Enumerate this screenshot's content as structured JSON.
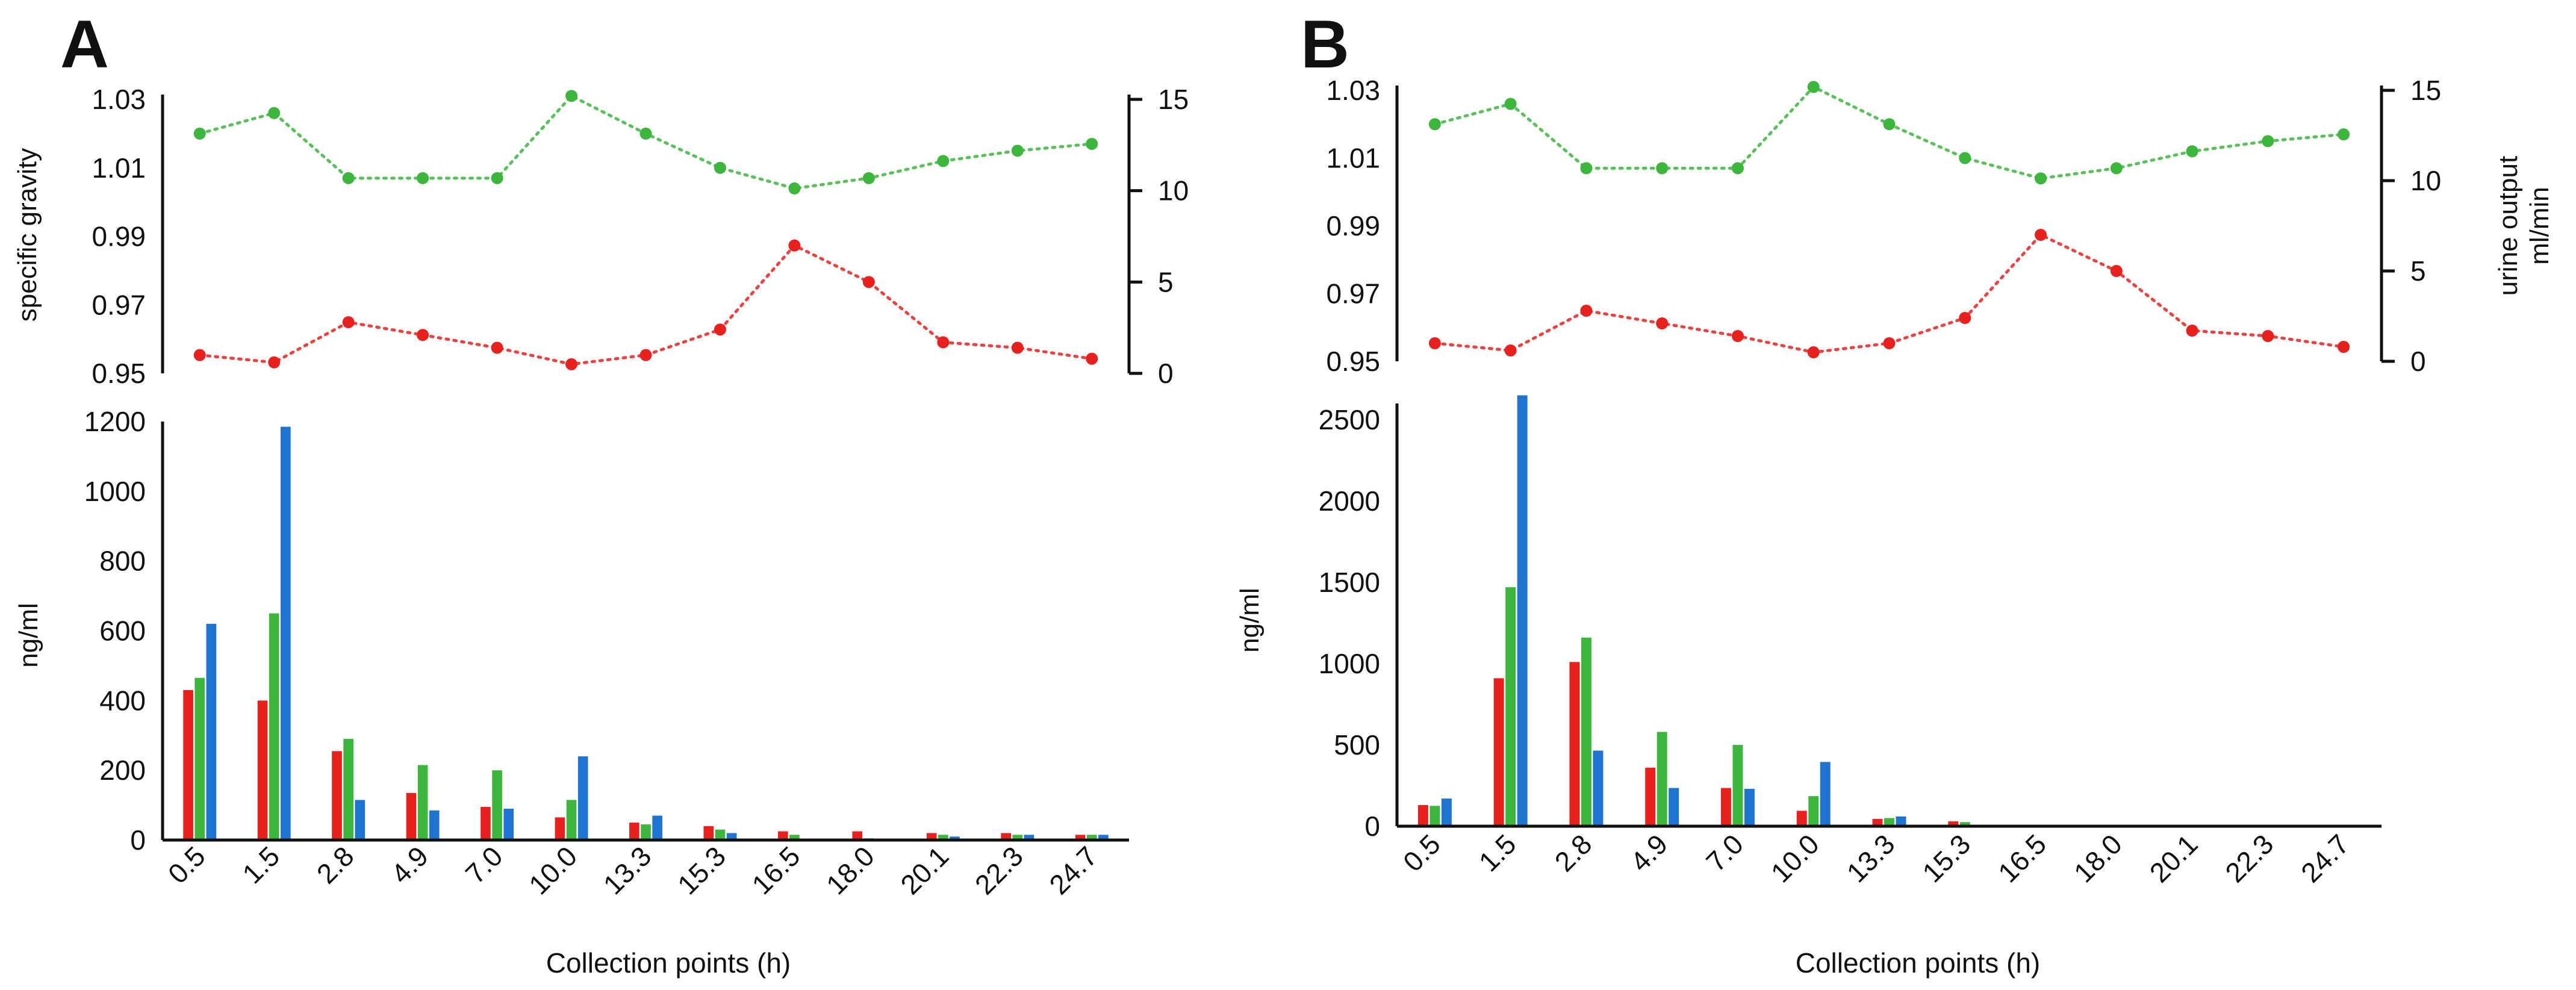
{
  "chart_data": [
    {
      "panel_label": "A",
      "top": {
        "type": "line",
        "categories": [
          "0.5",
          "1.5",
          "2.8",
          "4.9",
          "7.0",
          "10.0",
          "13.3",
          "15.3",
          "16.5",
          "18.0",
          "20.1",
          "22.3",
          "24.7"
        ],
        "left_axis": {
          "label": "specific gravity",
          "ticks": [
            "0.95",
            "0.97",
            "0.99",
            "1.01",
            "1.03"
          ],
          "range": [
            0.95,
            1.03
          ]
        },
        "right_axis": {
          "label": "",
          "ticks": [
            "0",
            "5",
            "10",
            "15"
          ],
          "range": [
            0,
            15
          ]
        },
        "series": [
          {
            "name": "specific gravity",
            "axis": "left",
            "color": "#3cb63c",
            "values": [
              1.02,
              1.026,
              1.007,
              1.007,
              1.007,
              1.031,
              1.02,
              1.01,
              1.004,
              1.007,
              1.012,
              1.015,
              1.017
            ]
          },
          {
            "name": "urine output",
            "axis": "right",
            "color": "#e8211f",
            "values": [
              1.0,
              0.6,
              2.8,
              2.1,
              1.4,
              0.5,
              1.0,
              2.4,
              7.0,
              5.0,
              1.7,
              1.4,
              0.8
            ]
          }
        ]
      },
      "bottom": {
        "type": "bar",
        "categories": [
          "0.5",
          "1.5",
          "2.8",
          "4.9",
          "7.0",
          "10.0",
          "13.3",
          "15.3",
          "16.5",
          "18.0",
          "20.1",
          "22.3",
          "24.7"
        ],
        "xlabel": "Collection points (h)",
        "ylabel": "ng/ml",
        "ylim": [
          0,
          1200
        ],
        "yticks": [
          "0",
          "200",
          "400",
          "600",
          "800",
          "1000",
          "1200"
        ],
        "series": [
          {
            "name": "red",
            "color": "#e8211f",
            "values": [
              430,
              400,
              255,
              135,
              95,
              65,
              50,
              40,
              25,
              25,
              20,
              20,
              15
            ]
          },
          {
            "name": "green",
            "color": "#3cb63c",
            "values": [
              465,
              650,
              290,
              215,
              200,
              115,
              45,
              30,
              15,
              5,
              15,
              15,
              15
            ]
          },
          {
            "name": "blue",
            "color": "#1f73d1",
            "values": [
              620,
              1185,
              115,
              85,
              90,
              240,
              70,
              20,
              0,
              0,
              10,
              15,
              15
            ]
          }
        ]
      }
    },
    {
      "panel_label": "B",
      "top": {
        "type": "line",
        "categories": [
          "0.5",
          "1.5",
          "2.8",
          "4.9",
          "7.0",
          "10.0",
          "13.3",
          "15.3",
          "16.5",
          "18.0",
          "20.1",
          "22.3",
          "24.7"
        ],
        "left_axis": {
          "label": "",
          "ticks": [
            "0.95",
            "0.97",
            "0.99",
            "1.01",
            "1.03"
          ],
          "range": [
            0.95,
            1.03
          ]
        },
        "right_axis": {
          "label": "urine output",
          "label2": "ml/min",
          "ticks": [
            "0",
            "5",
            "10",
            "15"
          ],
          "range": [
            0,
            15
          ]
        },
        "series": [
          {
            "name": "specific gravity",
            "axis": "left",
            "color": "#3cb63c",
            "values": [
              1.02,
              1.026,
              1.007,
              1.007,
              1.007,
              1.031,
              1.02,
              1.01,
              1.004,
              1.007,
              1.012,
              1.015,
              1.017
            ]
          },
          {
            "name": "urine output",
            "axis": "right",
            "color": "#e8211f",
            "values": [
              1.0,
              0.6,
              2.8,
              2.1,
              1.4,
              0.5,
              1.0,
              2.4,
              7.0,
              5.0,
              1.7,
              1.4,
              0.8
            ]
          }
        ]
      },
      "bottom": {
        "type": "bar",
        "categories": [
          "0.5",
          "1.5",
          "2.8",
          "4.9",
          "7.0",
          "10.0",
          "13.3",
          "15.3",
          "16.5",
          "18.0",
          "20.1",
          "22.3",
          "24.7"
        ],
        "xlabel": "Collection points (h)",
        "ylabel": "ng/ml",
        "ylim": [
          0,
          2600
        ],
        "yticks": [
          "0",
          "500",
          "1000",
          "1500",
          "2000",
          "2500"
        ],
        "series": [
          {
            "name": "red",
            "color": "#e8211f",
            "values": [
              130,
              910,
              1010,
              360,
              235,
              95,
              45,
              30,
              0,
              0,
              0,
              0,
              0
            ]
          },
          {
            "name": "green",
            "color": "#3cb63c",
            "values": [
              125,
              1470,
              1160,
              580,
              500,
              185,
              50,
              25,
              0,
              0,
              0,
              0,
              0
            ]
          },
          {
            "name": "blue",
            "color": "#1f73d1",
            "values": [
              170,
              2650,
              465,
              235,
              230,
              395,
              60,
              0,
              0,
              0,
              0,
              0,
              0
            ]
          }
        ]
      }
    }
  ]
}
